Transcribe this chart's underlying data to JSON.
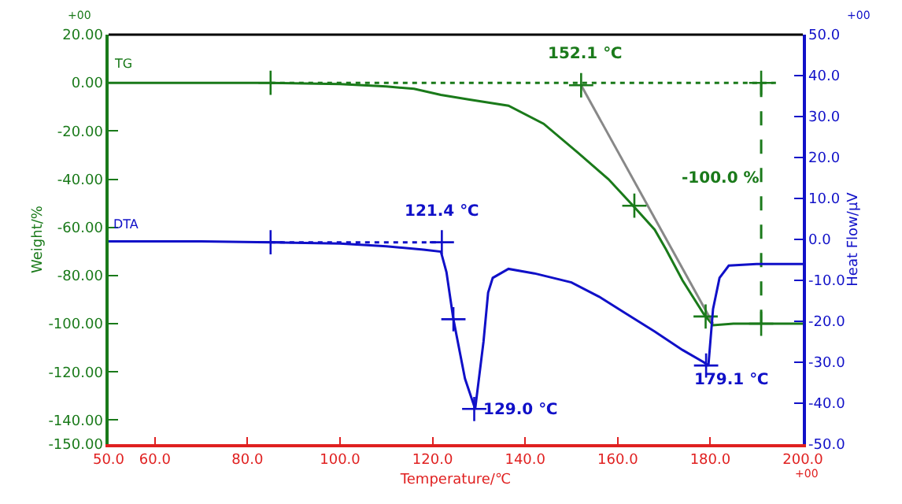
{
  "chart_data": {
    "type": "line",
    "xlabel": "Temperature/℃",
    "ylabel": "Weight/%",
    "y2label": "Heat Flow/μV",
    "xlim": [
      50,
      200
    ],
    "xticks": [
      {
        "value": 50,
        "label": "50.0"
      },
      {
        "value": 60,
        "label": "60.0"
      },
      {
        "value": 80,
        "label": "80.0"
      },
      {
        "value": 100,
        "label": "100.0"
      },
      {
        "value": 120,
        "label": "120.0"
      },
      {
        "value": 140,
        "label": "140.0"
      },
      {
        "value": 160,
        "label": "160.0"
      },
      {
        "value": 180,
        "label": "180.0"
      },
      {
        "value": 200,
        "label": "200.0"
      }
    ],
    "ylim": [
      -150,
      20
    ],
    "yticks": [
      {
        "value": 20,
        "label": "20.00"
      },
      {
        "value": 0,
        "label": "0.00"
      },
      {
        "value": -20,
        "label": "-20.00"
      },
      {
        "value": -40,
        "label": "-40.00"
      },
      {
        "value": -60,
        "label": "-60.00"
      },
      {
        "value": -80,
        "label": "-80.00"
      },
      {
        "value": -100,
        "label": "-100.00"
      },
      {
        "value": -120,
        "label": "-120.00"
      },
      {
        "value": -140,
        "label": "-140.00"
      },
      {
        "value": -150,
        "label": "-150.00"
      }
    ],
    "y2lim": [
      -50,
      50
    ],
    "y2ticks": [
      {
        "value": 50,
        "label": "50.0"
      },
      {
        "value": 40,
        "label": "40.0"
      },
      {
        "value": 30,
        "label": "30.0"
      },
      {
        "value": 20,
        "label": "20.0"
      },
      {
        "value": 10,
        "label": "10.0"
      },
      {
        "value": 0,
        "label": "0.0"
      },
      {
        "value": -10,
        "label": "-10.0"
      },
      {
        "value": -20,
        "label": "-20.0"
      },
      {
        "value": -30,
        "label": "-30.0"
      },
      {
        "value": -40,
        "label": "-40.0"
      },
      {
        "value": -50,
        "label": "-50.0"
      }
    ],
    "marker": "none",
    "line_style": "solid",
    "series": [
      {
        "color": "#1a7a1a",
        "x": [
          50,
          70,
          85,
          100,
          110,
          116,
          121.8,
          128,
          136.4,
          144,
          151.4,
          158,
          163.6,
          168,
          170.4,
          174,
          178.6,
          180.6,
          185,
          190,
          195,
          200
        ],
        "values": [
          0,
          0,
          0,
          -0.5,
          -1.5,
          -2.5,
          -5,
          -7,
          -9.5,
          -17,
          -29,
          -40,
          -51.6,
          -61,
          -69,
          -82,
          -96,
          -100.6,
          -100,
          -100,
          -100,
          -100
        ]
      },
      {
        "color": "#1010c8",
        "axis": "y2",
        "x": [
          50,
          70,
          85,
          100,
          110,
          118,
          121.8,
          123,
          124.5,
          127,
          129.2,
          131,
          132,
          133,
          136.4,
          142,
          150,
          156,
          161.6,
          168,
          174,
          178.6,
          179.6,
          180.6,
          182,
          184,
          190,
          200
        ],
        "values": [
          -0.5,
          -0.5,
          -0.7,
          -1,
          -1.7,
          -2.5,
          -3,
          -8,
          -19.5,
          -34,
          -41.4,
          -25,
          -13,
          -9.4,
          -7.2,
          -8.3,
          -10.5,
          -14,
          -18,
          -22.5,
          -27,
          -30,
          -30.8,
          -17,
          -9.4,
          -6.4,
          -6,
          -6
        ]
      },
      {
        "color": "#1a7a1a",
        "line_style": "dotted",
        "x": [
          85,
          195
        ],
        "values": [
          0,
          0
        ]
      },
      {
        "color": "#888888",
        "x": [
          152.1,
          180.6
        ],
        "values": [
          -1,
          -100
        ]
      },
      {
        "color": "#1a7a1a",
        "line_style": "dashed",
        "x": [
          191,
          191
        ],
        "values": [
          0,
          -100
        ]
      },
      {
        "color": "#1010c8",
        "axis": "y2",
        "line_style": "dotted",
        "x": [
          85,
          122
        ],
        "values": [
          -0.7,
          -0.7
        ]
      },
      {
        "type": "scatter",
        "marker": "cross",
        "color": "#1a7a1a",
        "x": [
          85,
          152.1,
          163.6,
          179,
          191,
          191
        ],
        "values": [
          0,
          -1,
          -51,
          -97,
          0,
          -100
        ]
      },
      {
        "type": "scatter",
        "marker": "cross",
        "color": "#1010c8",
        "axis": "y2",
        "x": [
          85,
          122,
          124.5,
          129,
          179.1
        ],
        "values": [
          -0.7,
          -0.7,
          -19.5,
          -41.4,
          -30.8
        ]
      }
    ],
    "annotations": [
      "152.1 ℃",
      "-100.0 %",
      "121.4 ℃",
      "129.0 ℃",
      "179.1 ℃",
      "TG",
      "DTA",
      "+00",
      "+00",
      "+00"
    ]
  }
}
